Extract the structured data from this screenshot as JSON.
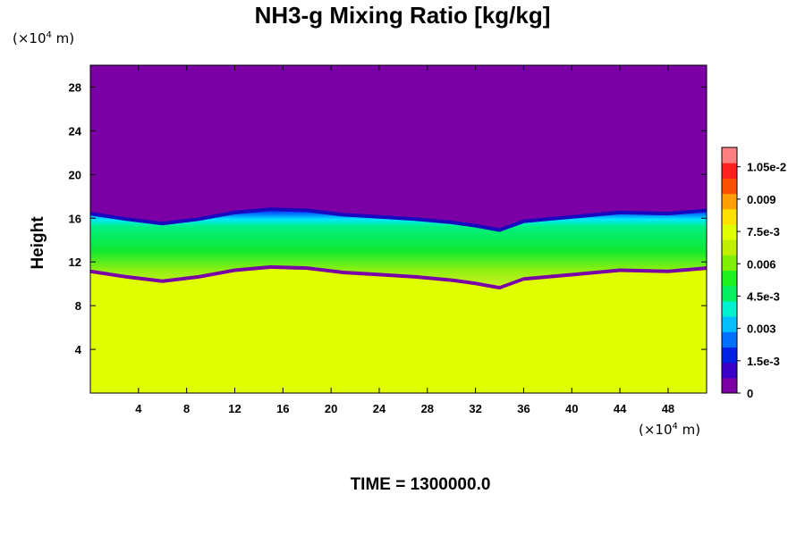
{
  "chart_data": {
    "type": "heatmap",
    "title": "NH3-g Mixing Ratio [kg/kg]",
    "ylabel": "Height",
    "xlabel": "",
    "x_unit": {
      "prefix": "(×10",
      "exp": "4",
      "suffix": " m)"
    },
    "y_unit": {
      "prefix": "(×10",
      "exp": "4",
      "suffix": " m)"
    },
    "xlim": [
      0,
      51.2
    ],
    "ylim": [
      0,
      30
    ],
    "x_ticks": [
      4,
      8,
      12,
      16,
      20,
      24,
      28,
      32,
      36,
      40,
      44,
      48
    ],
    "y_ticks": [
      4,
      8,
      12,
      16,
      20,
      24,
      28
    ],
    "footer": "TIME = 1300000.0",
    "colorbar": {
      "min": 0,
      "max": 0.0114,
      "labels": [
        "0",
        "1.5e-3",
        "0.003",
        "4.5e-3",
        "0.006",
        "7.5e-3",
        "0.009",
        "1.05e-2"
      ],
      "label_values": [
        0,
        0.0015,
        0.003,
        0.0045,
        0.006,
        0.0075,
        0.009,
        0.0105
      ],
      "colors": [
        "#7a00a6",
        "#3a00c8",
        "#0020e6",
        "#0070ff",
        "#00c0ff",
        "#00f0d0",
        "#00f060",
        "#20f020",
        "#80f000",
        "#c0f000",
        "#e0ff00",
        "#ffe000",
        "#ffa000",
        "#ff5000",
        "#ff2020",
        "#ff8080"
      ]
    },
    "regions": {
      "background_value": 0,
      "lower_value": 0.0078,
      "layer_top_height": [
        16.5,
        16.0,
        15.6,
        16.0,
        16.6,
        16.9,
        16.8,
        16.4,
        16.2,
        16.0,
        15.7,
        15.4,
        15.0,
        15.8,
        16.0,
        16.3,
        16.6,
        16.5,
        16.8
      ],
      "layer_x": [
        0,
        3,
        6,
        9,
        12,
        15,
        18,
        21,
        24,
        27,
        30,
        32,
        34,
        36,
        38,
        41,
        44,
        48,
        51.2
      ]
    }
  }
}
